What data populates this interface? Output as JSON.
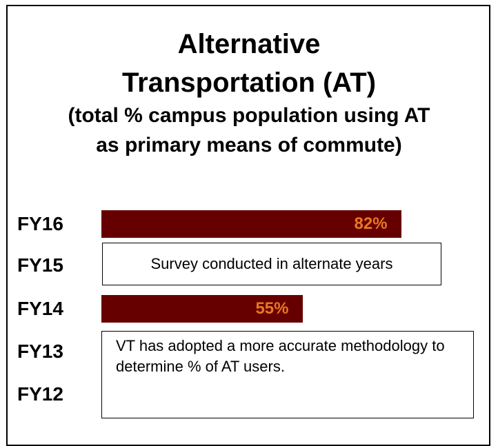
{
  "chart_data": {
    "type": "bar",
    "title": "Alternative Transportation (AT)",
    "subtitle": "(total % campus population using AT as primary means of commute)",
    "categories": [
      "FY16",
      "FY15",
      "FY14",
      "FY13",
      "FY12"
    ],
    "values": [
      82,
      null,
      55,
      null,
      null
    ],
    "value_labels": [
      "82%",
      null,
      "55%",
      null,
      null
    ],
    "color": "#660000",
    "label_color": "#e87722",
    "annotations": [
      "Survey conducted in alternate years",
      "VT has adopted a more accurate methodology to determine % of AT users."
    ]
  }
}
